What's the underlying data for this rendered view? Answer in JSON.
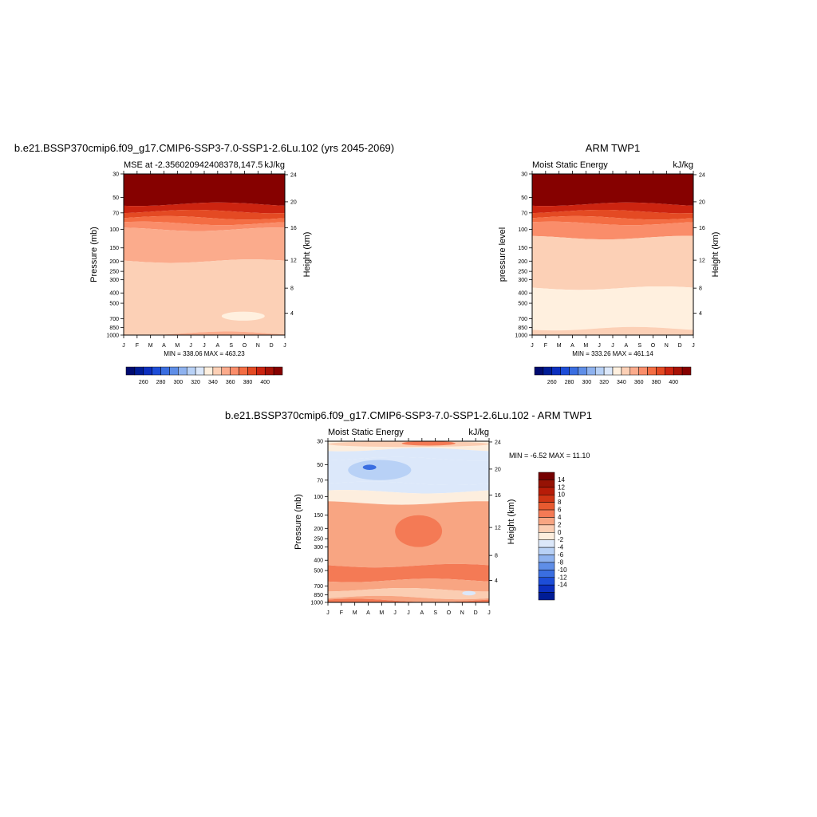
{
  "chart_data": [
    {
      "type": "heatmap",
      "title": "b.e21.BSSP370cmip6.f09_g17.CMIP6-SSP3-7.0-SSP1-2.6Lu.102 (yrs 2045-2069)",
      "left_subtitle": "MSE at -2.356020942408378,147.5",
      "right_subtitle": "kJ/kg",
      "ylabel": "Pressure (mb)",
      "ylabel_right": "Height (km)",
      "x_ticks": [
        "J",
        "F",
        "M",
        "A",
        "M",
        "J",
        "J",
        "A",
        "S",
        "O",
        "N",
        "D",
        "J"
      ],
      "y_ticks": [
        "30",
        "50",
        "70",
        "100",
        "150",
        "200",
        "250",
        "300",
        "400",
        "500",
        "700",
        "850",
        "1000"
      ],
      "y_ticks_right": [
        "24",
        "20",
        "16",
        "12",
        "8",
        "4"
      ],
      "minmax": "MIN = 338.06 MAX = 463.23",
      "colorbar_labels": [
        "260",
        "280",
        "300",
        "320",
        "340",
        "360",
        "380",
        "400"
      ],
      "layers": [
        {
          "from_mb": 30,
          "to_mb": 58,
          "level": 405
        },
        {
          "from_mb": 58,
          "to_mb": 68,
          "level": 395
        },
        {
          "from_mb": 68,
          "to_mb": 78,
          "level": 385
        },
        {
          "from_mb": 78,
          "to_mb": 88,
          "level": 375
        },
        {
          "from_mb": 88,
          "to_mb": 100,
          "level": 365
        },
        {
          "from_mb": 100,
          "to_mb": 200,
          "level": 355
        },
        {
          "from_mb": 200,
          "to_mb": 960,
          "level": 345
        },
        {
          "from_mb": 960,
          "to_mb": 1000,
          "level": 355
        }
      ],
      "patches": [
        {
          "months": [
            7.3,
            10.5
          ],
          "from_mb": 600,
          "to_mb": 730,
          "level": 335
        }
      ]
    },
    {
      "type": "heatmap",
      "title": "ARM TWP1",
      "left_subtitle": "Moist Static Energy",
      "right_subtitle": "kJ/kg",
      "ylabel": "pressure level",
      "ylabel_right": "Height (km)",
      "x_ticks": [
        "J",
        "F",
        "M",
        "A",
        "M",
        "J",
        "J",
        "A",
        "S",
        "O",
        "N",
        "D",
        "J"
      ],
      "y_ticks": [
        "30",
        "50",
        "70",
        "100",
        "150",
        "200",
        "250",
        "300",
        "400",
        "500",
        "700",
        "850",
        "1000"
      ],
      "y_ticks_right": [
        "24",
        "20",
        "16",
        "12",
        "8",
        "4"
      ],
      "minmax": "MIN = 333.26 MAX = 461.14",
      "colorbar_labels": [
        "260",
        "280",
        "300",
        "320",
        "340",
        "360",
        "380",
        "400"
      ],
      "layers": [
        {
          "from_mb": 30,
          "to_mb": 58,
          "level": 405
        },
        {
          "from_mb": 58,
          "to_mb": 68,
          "level": 395
        },
        {
          "from_mb": 68,
          "to_mb": 78,
          "level": 385
        },
        {
          "from_mb": 78,
          "to_mb": 88,
          "level": 375
        },
        {
          "from_mb": 88,
          "to_mb": 120,
          "level": 365
        },
        {
          "from_mb": 120,
          "to_mb": 360,
          "level": 345
        },
        {
          "from_mb": 360,
          "to_mb": 870,
          "level": 335
        },
        {
          "from_mb": 870,
          "to_mb": 1000,
          "level": 345
        }
      ],
      "patches": []
    },
    {
      "type": "heatmap",
      "title": "b.e21.BSSP370cmip6.f09_g17.CMIP6-SSP3-7.0-SSP1-2.6Lu.102 - ARM TWP1",
      "left_subtitle": "Moist Static Energy",
      "right_subtitle": "kJ/kg",
      "ylabel": "Pressure (mb)",
      "ylabel_right": "Height (km)",
      "x_ticks": [
        "J",
        "F",
        "M",
        "A",
        "M",
        "J",
        "J",
        "A",
        "S",
        "O",
        "N",
        "D",
        "J"
      ],
      "y_ticks": [
        "30",
        "50",
        "70",
        "100",
        "150",
        "200",
        "250",
        "300",
        "400",
        "500",
        "700",
        "850",
        "1000"
      ],
      "y_ticks_right": [
        "24",
        "20",
        "16",
        "12",
        "8",
        "4"
      ],
      "minmax": "MIN =  -6.52 MAX =  11.10",
      "colorbar_labels": [
        "14",
        "12",
        "10",
        "8",
        "6",
        "4",
        "2",
        "0",
        "-2",
        "-4",
        "-6",
        "-8",
        "-10",
        "-12",
        "-14"
      ],
      "layers": [
        {
          "from_mb": 30,
          "to_mb": 36,
          "level": 1
        },
        {
          "from_mb": 36,
          "to_mb": 44,
          "level": -1
        },
        {
          "from_mb": 44,
          "to_mb": 75,
          "level": -1
        },
        {
          "from_mb": 75,
          "to_mb": 90,
          "level": -1
        },
        {
          "from_mb": 90,
          "to_mb": 115,
          "level": 1
        },
        {
          "from_mb": 115,
          "to_mb": 450,
          "level": 5
        },
        {
          "from_mb": 450,
          "to_mb": 620,
          "level": 7
        },
        {
          "from_mb": 620,
          "to_mb": 760,
          "level": 5
        },
        {
          "from_mb": 760,
          "to_mb": 900,
          "level": 3
        },
        {
          "from_mb": 900,
          "to_mb": 960,
          "level": 5
        },
        {
          "from_mb": 960,
          "to_mb": 1000,
          "level": 7
        }
      ],
      "patches": [
        {
          "months": [
            0.0,
            12.0
          ],
          "from_mb": 30,
          "to_mb": 34,
          "level": 3
        },
        {
          "months": [
            5.5,
            9.5
          ],
          "from_mb": 30,
          "to_mb": 33,
          "level": 7
        },
        {
          "months": [
            1.5,
            6.2
          ],
          "from_mb": 45,
          "to_mb": 70,
          "level": -3
        },
        {
          "months": [
            2.6,
            3.6
          ],
          "from_mb": 50,
          "to_mb": 56,
          "level": -7
        },
        {
          "months": [
            5.0,
            8.5
          ],
          "from_mb": 150,
          "to_mb": 300,
          "level": 7
        },
        {
          "months": [
            0.0,
            0.4
          ],
          "from_mb": 480,
          "to_mb": 560,
          "level": 7
        },
        {
          "months": [
            10.0,
            11.0
          ],
          "from_mb": 780,
          "to_mb": 860,
          "level": -1
        }
      ]
    }
  ],
  "colors": {
    "warm": [
      "#fff0df",
      "#fcd0b6",
      "#fbab8c",
      "#fa8d6a",
      "#f46d43",
      "#e44a23",
      "#cc2410",
      "#a81206",
      "#860100"
    ],
    "cool": [
      "#dce8fa",
      "#b8d1f6",
      "#8eb2ef",
      "#5f8ee7",
      "#3a6ee1",
      "#1d4dd8",
      "#0c2fbf",
      "#001c96",
      "#000b70"
    ],
    "diff_warm": [
      "#fdeede",
      "#fbcdb2",
      "#f8a582",
      "#f47a55",
      "#e75a30",
      "#cf3514",
      "#b71c08",
      "#961204",
      "#750000"
    ]
  }
}
